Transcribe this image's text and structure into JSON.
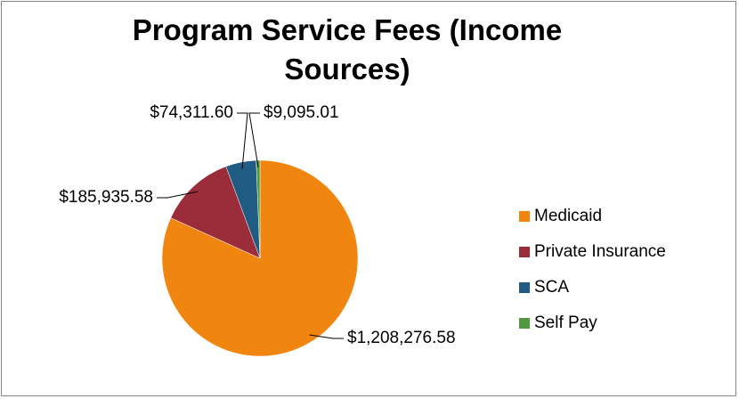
{
  "chart_data": {
    "type": "pie",
    "title": "Program Service Fees (Income Sources)",
    "categories": [
      "Medicaid",
      "Private Insurance",
      "SCA",
      "Self Pay"
    ],
    "values": [
      1208276.58,
      185935.58,
      74311.6,
      9095.01
    ],
    "value_labels": [
      "$1,208,276.58",
      "$185,935.58",
      "$74,311.60",
      "$9,095.01"
    ],
    "colors": [
      "#f0860f",
      "#9b2d3a",
      "#1f5b82",
      "#4f9a3f"
    ],
    "legend": "right"
  }
}
